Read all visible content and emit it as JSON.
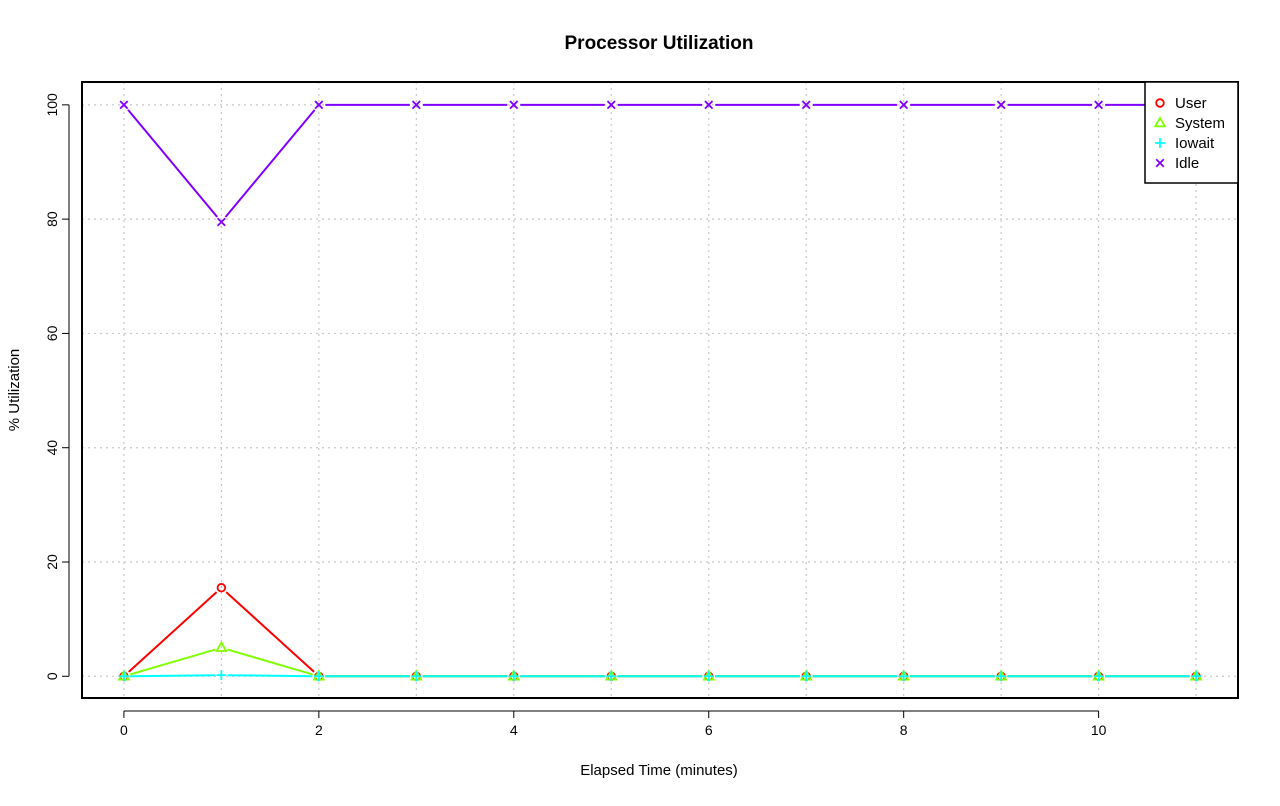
{
  "chart_data": {
    "type": "line",
    "title": "Processor Utilization",
    "xlabel": "Elapsed Time (minutes)",
    "ylabel": "% Utilization",
    "xlim": [
      -0.43,
      11.43
    ],
    "ylim": [
      -3.8,
      104
    ],
    "x_ticks": [
      0,
      2,
      4,
      6,
      8,
      10
    ],
    "y_ticks": [
      0,
      20,
      40,
      60,
      80,
      100
    ],
    "grid": true,
    "legend_position": "top-right",
    "x": [
      0,
      1,
      2,
      3,
      4,
      5,
      6,
      7,
      8,
      9,
      10,
      11
    ],
    "series": [
      {
        "name": "User",
        "color": "#ff0000",
        "marker": "circle",
        "values": [
          0,
          15.5,
          0,
          0,
          0,
          0,
          0,
          0,
          0,
          0,
          0,
          0
        ]
      },
      {
        "name": "System",
        "color": "#80ff00",
        "marker": "triangle",
        "values": [
          0,
          5,
          0,
          0,
          0,
          0,
          0,
          0,
          0,
          0,
          0,
          0
        ]
      },
      {
        "name": "Iowait",
        "color": "#00ffff",
        "marker": "plus",
        "values": [
          0,
          0.2,
          0,
          0,
          0,
          0,
          0,
          0,
          0,
          0,
          0,
          0
        ]
      },
      {
        "name": "Idle",
        "color": "#8000ff",
        "marker": "cross",
        "values": [
          100,
          79.5,
          100,
          100,
          100,
          100,
          100,
          100,
          100,
          100,
          100,
          100
        ]
      }
    ]
  }
}
